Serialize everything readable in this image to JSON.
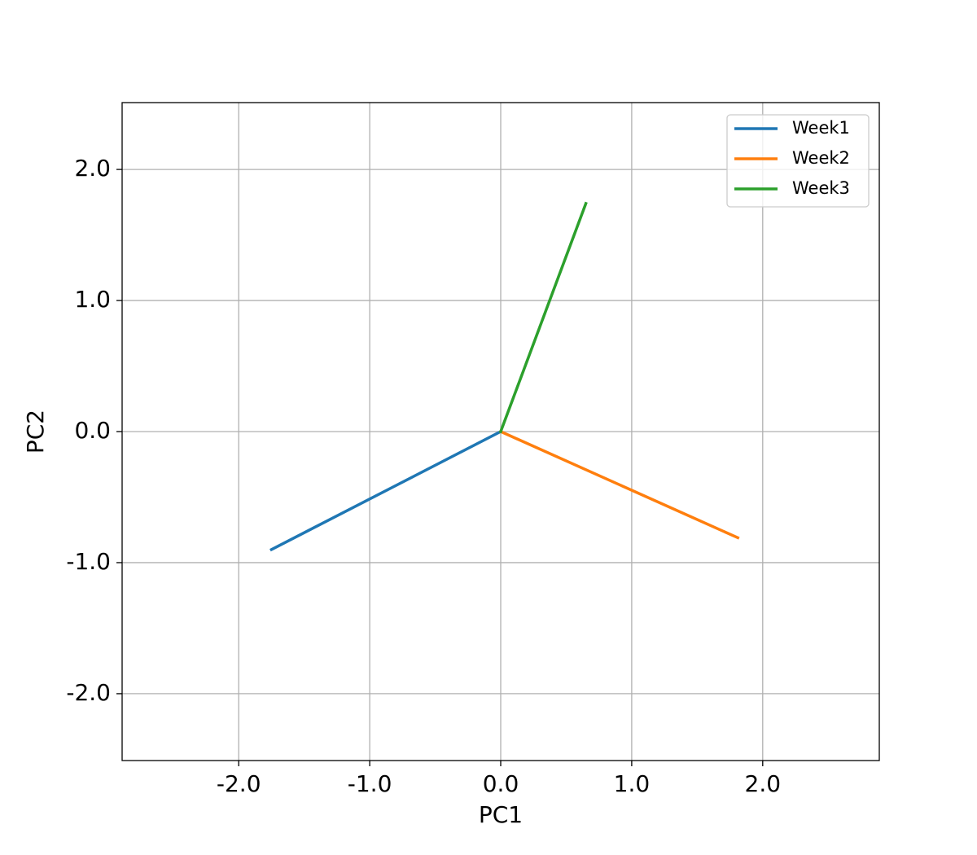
{
  "chart_data": {
    "type": "line",
    "xlabel": "PC1",
    "ylabel": "PC2",
    "xlim": [
      -2.89,
      2.89
    ],
    "ylim": [
      -2.51,
      2.51
    ],
    "xticks": [
      {
        "value": -2,
        "label": "-2.0"
      },
      {
        "value": -1,
        "label": "-1.0"
      },
      {
        "value": 0,
        "label": "0.0"
      },
      {
        "value": 1,
        "label": "1.0"
      },
      {
        "value": 2,
        "label": "2.0"
      }
    ],
    "yticks": [
      {
        "value": -2,
        "label": "-2.0"
      },
      {
        "value": -1,
        "label": "-1.0"
      },
      {
        "value": 0,
        "label": "0.0"
      },
      {
        "value": 1,
        "label": "1.0"
      },
      {
        "value": 2,
        "label": "2.0"
      }
    ],
    "grid": true,
    "legend": "upper right",
    "series": [
      {
        "name": "Week1",
        "color": "#1f77b4",
        "x": [
          0,
          -1.75
        ],
        "values": [
          0,
          -0.9
        ]
      },
      {
        "name": "Week2",
        "color": "#ff7f0e",
        "x": [
          0,
          1.81
        ],
        "values": [
          0,
          -0.81
        ]
      },
      {
        "name": "Week3",
        "color": "#2ca02c",
        "x": [
          0,
          0.65
        ],
        "values": [
          0,
          1.74
        ]
      }
    ]
  }
}
